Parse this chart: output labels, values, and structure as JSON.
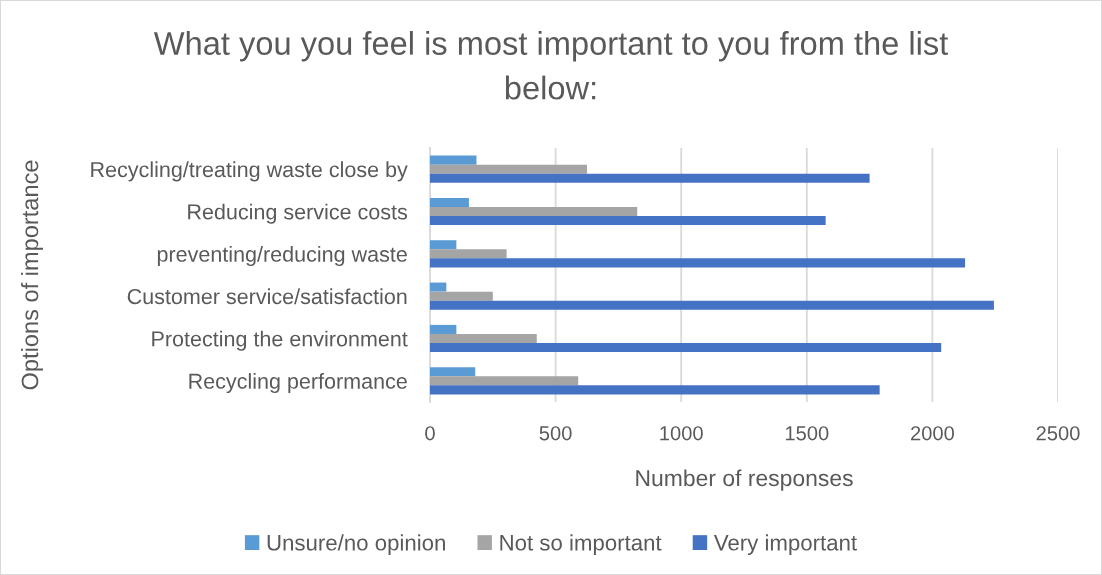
{
  "chart_data": {
    "type": "bar",
    "orientation": "horizontal",
    "title": "What you you feel is most important to you from the list below:",
    "xlabel": "Number of responses",
    "ylabel": "Options of importance",
    "categories": [
      "Recycling/treating waste close by",
      "Reducing service costs",
      "preventing/reducing waste",
      "Customer service/satisfaction",
      "Protecting the environment",
      "Recycling performance"
    ],
    "series": [
      {
        "name": "Unsure/no opinion",
        "color": "#5b9bd5",
        "values": [
          185,
          155,
          105,
          65,
          105,
          180
        ]
      },
      {
        "name": "Not so important",
        "color": "#a5a5a5",
        "values": [
          625,
          825,
          305,
          250,
          425,
          590
        ]
      },
      {
        "name": "Very important",
        "color": "#4472c4",
        "values": [
          1750,
          1575,
          2130,
          2245,
          2035,
          1790
        ]
      }
    ],
    "xlim": [
      0,
      2500
    ],
    "xticks": [
      0,
      500,
      1000,
      1500,
      2000,
      2500
    ],
    "grid": "x",
    "legend": "bottom"
  }
}
